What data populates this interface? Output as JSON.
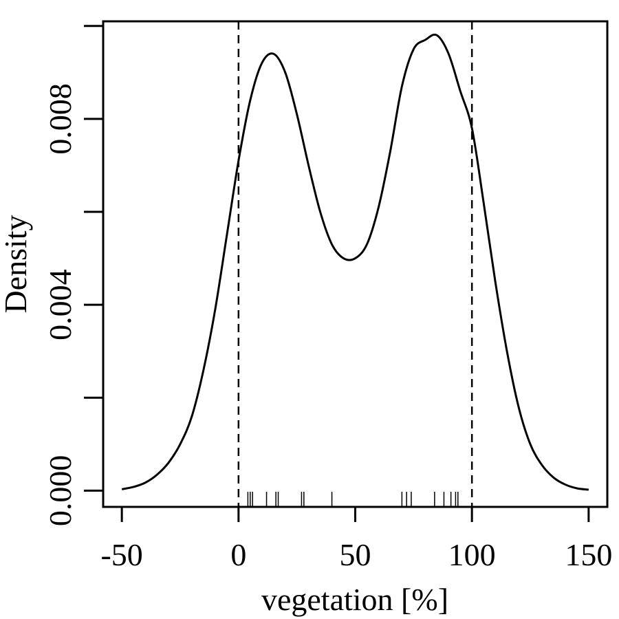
{
  "chart_data": {
    "type": "line",
    "title": "",
    "xlabel": "vegetation [%]",
    "ylabel": "Density",
    "xlim": [
      -58,
      158
    ],
    "ylim": [
      -0.00035,
      0.0101
    ],
    "x_ticks": [
      -50,
      0,
      50,
      100,
      150
    ],
    "x_tick_labels": [
      "-50",
      "0",
      "50",
      "100",
      "150"
    ],
    "y_ticks": [
      0.0,
      0.002,
      0.004,
      0.006,
      0.008,
      0.01
    ],
    "y_tick_labels": [
      "0.000",
      "",
      "0.004",
      "",
      "0.008",
      ""
    ],
    "series": [
      {
        "name": "density",
        "style": "solid",
        "x": [
          -50,
          -45,
          -40,
          -35,
          -30,
          -25,
          -20,
          -15,
          -10,
          -5,
          0,
          5,
          10,
          15,
          20,
          25,
          30,
          35,
          40,
          45,
          50,
          55,
          60,
          65,
          70,
          75,
          80,
          85,
          90,
          95,
          100,
          105,
          110,
          115,
          120,
          125,
          130,
          135,
          140,
          145,
          150
        ],
        "y": [
          3e-05,
          8e-05,
          0.00017,
          0.00034,
          0.0006,
          0.001,
          0.0016,
          0.0026,
          0.0039,
          0.0055,
          0.0071,
          0.0084,
          0.0092,
          0.0094,
          0.009,
          0.0081,
          0.007,
          0.006,
          0.0053,
          0.005,
          0.005,
          0.0053,
          0.0061,
          0.0073,
          0.0087,
          0.0095,
          0.0097,
          0.0098,
          0.0094,
          0.0086,
          0.0078,
          0.0062,
          0.0045,
          0.003,
          0.0018,
          0.001,
          0.00055,
          0.00028,
          0.00013,
          5e-05,
          2e-05
        ]
      }
    ],
    "reference_lines": [
      {
        "x": 0,
        "style": "dashed"
      },
      {
        "x": 100,
        "style": "dashed"
      }
    ],
    "rug": [
      4,
      5,
      6,
      12,
      16,
      17,
      27,
      28,
      40,
      70,
      72,
      74,
      84,
      88,
      91,
      93,
      94
    ]
  }
}
